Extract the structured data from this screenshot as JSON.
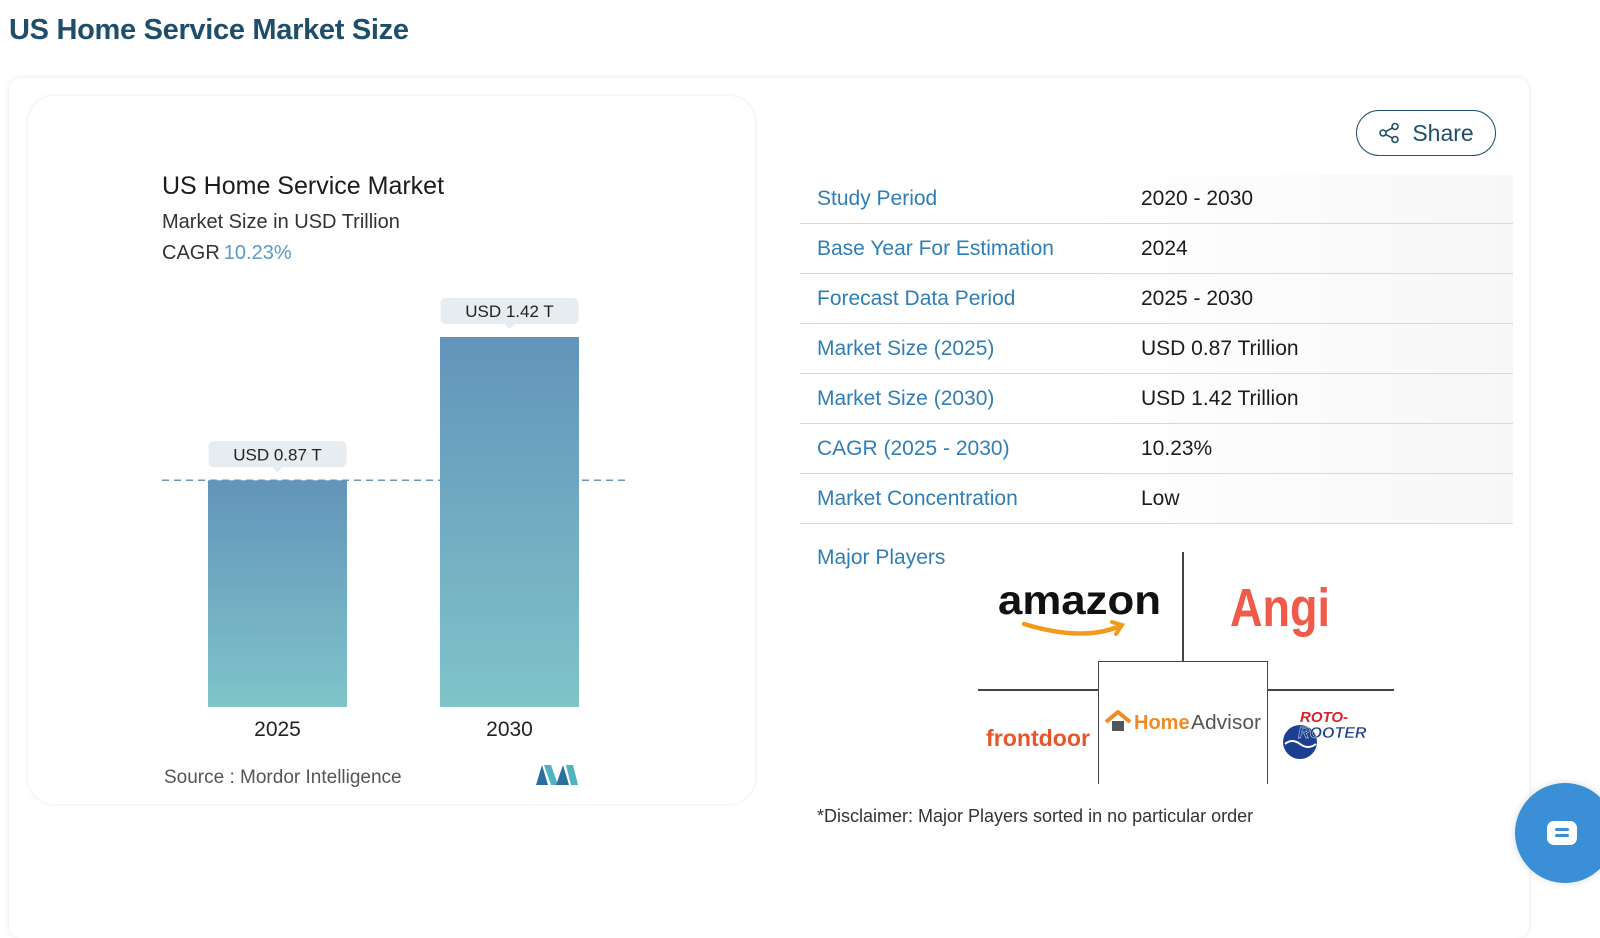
{
  "page": {
    "heading": "US Home Service Market Size"
  },
  "chart": {
    "title": "US Home Service Market",
    "subtitle": "Market Size in USD Trillion",
    "cagr_label": "CAGR",
    "cagr_value": "10.23%",
    "source": "Source :  Mordor Intelligence"
  },
  "chart_data": {
    "type": "bar",
    "title": "US Home Service Market",
    "subtitle": "Market Size in USD Trillion",
    "categories": [
      "2025",
      "2030"
    ],
    "values": [
      0.87,
      1.42
    ],
    "data_labels": [
      "USD 0.87 T",
      "USD 1.42 T"
    ],
    "ylim": [
      0,
      1.42
    ],
    "reference_line": 0.87,
    "grid": false,
    "legend": "none"
  },
  "share": {
    "label": "Share"
  },
  "info_rows": [
    {
      "label": "Study Period",
      "value": "2020 - 2030"
    },
    {
      "label": "Base Year For Estimation",
      "value": "2024"
    },
    {
      "label": "Forecast Data Period",
      "value": "2025 - 2030"
    },
    {
      "label": "Market Size (2025)",
      "value": "USD 0.87 Trillion"
    },
    {
      "label": "Market Size (2030)",
      "value": "USD 1.42 Trillion"
    },
    {
      "label": "CAGR (2025 - 2030)",
      "value": "10.23%"
    },
    {
      "label": "Market Concentration",
      "value": "Low"
    }
  ],
  "players": {
    "label": "Major Players",
    "logos": [
      "amazon",
      "Angi",
      "frontdoor",
      "HomeAdvisor",
      "ROTO-ROOTER"
    ],
    "disclaimer": "*Disclaimer: Major Players sorted in no particular order"
  },
  "colors": {
    "heading": "#1f4e6b",
    "accent": "#2f7fb6",
    "bar_top": "#6394bb",
    "bar_bottom": "#7fc4c9"
  },
  "icons": {
    "share": "share-icon",
    "chat": "chat-icon",
    "brand": "mordor-logo"
  }
}
